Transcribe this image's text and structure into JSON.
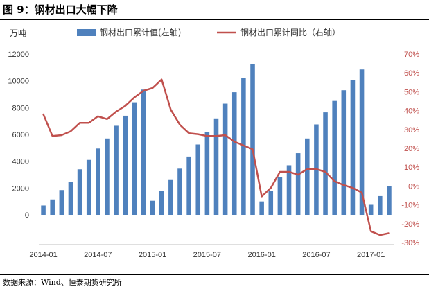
{
  "figure": {
    "title": "图 9：钢材出口大幅下降",
    "source": "数据来源：Wind、恒泰期货研究所"
  },
  "chart_data": {
    "type": "bar+line",
    "left_axis": {
      "unit": "万吨",
      "ylim": [
        0,
        12000
      ],
      "ticks": [
        0,
        2000,
        4000,
        6000,
        8000,
        10000,
        12000
      ]
    },
    "right_axis": {
      "ylim": [
        -30,
        70
      ],
      "ticks": [
        "-30%",
        "-20%",
        "-10%",
        "0%",
        "10%",
        "20%",
        "30%",
        "40%",
        "50%",
        "60%",
        "70%"
      ]
    },
    "x_tick_labels": [
      {
        "index": 0,
        "label": "2014-01"
      },
      {
        "index": 6,
        "label": "2014-07"
      },
      {
        "index": 12,
        "label": "2015-01"
      },
      {
        "index": 18,
        "label": "2015-07"
      },
      {
        "index": 24,
        "label": "2016-01"
      },
      {
        "index": 30,
        "label": "2016-07"
      },
      {
        "index": 36,
        "label": "2017-01"
      }
    ],
    "categories": [
      "2014-01",
      "2014-02",
      "2014-03",
      "2014-04",
      "2014-05",
      "2014-06",
      "2014-07",
      "2014-08",
      "2014-09",
      "2014-10",
      "2014-11",
      "2014-12",
      "2015-01",
      "2015-02",
      "2015-03",
      "2015-04",
      "2015-05",
      "2015-06",
      "2015-07",
      "2015-08",
      "2015-09",
      "2015-10",
      "2015-11",
      "2015-12",
      "2016-01",
      "2016-02",
      "2016-03",
      "2016-04",
      "2016-05",
      "2016-06",
      "2016-07",
      "2016-08",
      "2016-09",
      "2016-10",
      "2016-11",
      "2016-12",
      "2017-01",
      "2017-02",
      "2017-03"
    ],
    "series": [
      {
        "name": "钢材出口累计值(左轴)",
        "type": "bar",
        "axis": "left",
        "color": "#4f81bd",
        "values": [
          700,
          1150,
          1850,
          2450,
          3400,
          4100,
          4950,
          5700,
          6650,
          7400,
          8400,
          9350,
          1050,
          1800,
          2600,
          3450,
          4350,
          5250,
          6200,
          7200,
          8300,
          9150,
          10200,
          11250,
          1000,
          1800,
          2800,
          3700,
          4600,
          5700,
          6750,
          7650,
          8500,
          9300,
          10050,
          10850,
          750,
          1400,
          2150
        ]
      },
      {
        "name": "钢材出口累计同比（右轴）",
        "type": "line",
        "axis": "right",
        "color": "#c0504d",
        "values": [
          38,
          26.5,
          27,
          29,
          33.5,
          33.5,
          37,
          35.5,
          39.5,
          42.5,
          47,
          50.5,
          52,
          56.5,
          40.5,
          32.5,
          28,
          27.5,
          26.5,
          26.5,
          27,
          23.5,
          21.5,
          19.5,
          -5.5,
          -1,
          7.5,
          7.5,
          6,
          9,
          9,
          7.5,
          2.5,
          0.5,
          -1,
          -3.5,
          -24,
          -26,
          -25
        ]
      }
    ]
  }
}
